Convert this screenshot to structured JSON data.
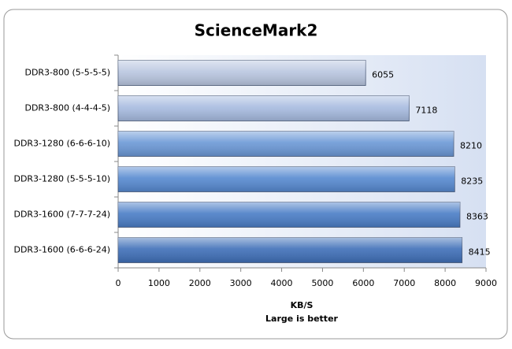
{
  "chart_data": {
    "type": "hbar",
    "title": "ScienceMark2",
    "categories": [
      "DDR3-800 (5-5-5-5)",
      "DDR3-800 (4-4-4-5)",
      "DDR3-1280 (6-6-6-10)",
      "DDR3-1280 (5-5-5-10)",
      "DDR3-1600 (7-7-7-24)",
      "DDR3-1600 (6-6-6-24)"
    ],
    "values": [
      6055,
      7118,
      8210,
      8235,
      8363,
      8415
    ],
    "colors": [
      "#b9c6e0",
      "#a7bbe0",
      "#6b98d6",
      "#5689d0",
      "#4a7dc6",
      "#3f6fb8"
    ],
    "xlim": [
      0,
      9000
    ],
    "xticks": [
      0,
      1000,
      2000,
      3000,
      4000,
      5000,
      6000,
      7000,
      8000,
      9000
    ],
    "xlabel": "KB/S",
    "subtitle": "Large is better"
  }
}
